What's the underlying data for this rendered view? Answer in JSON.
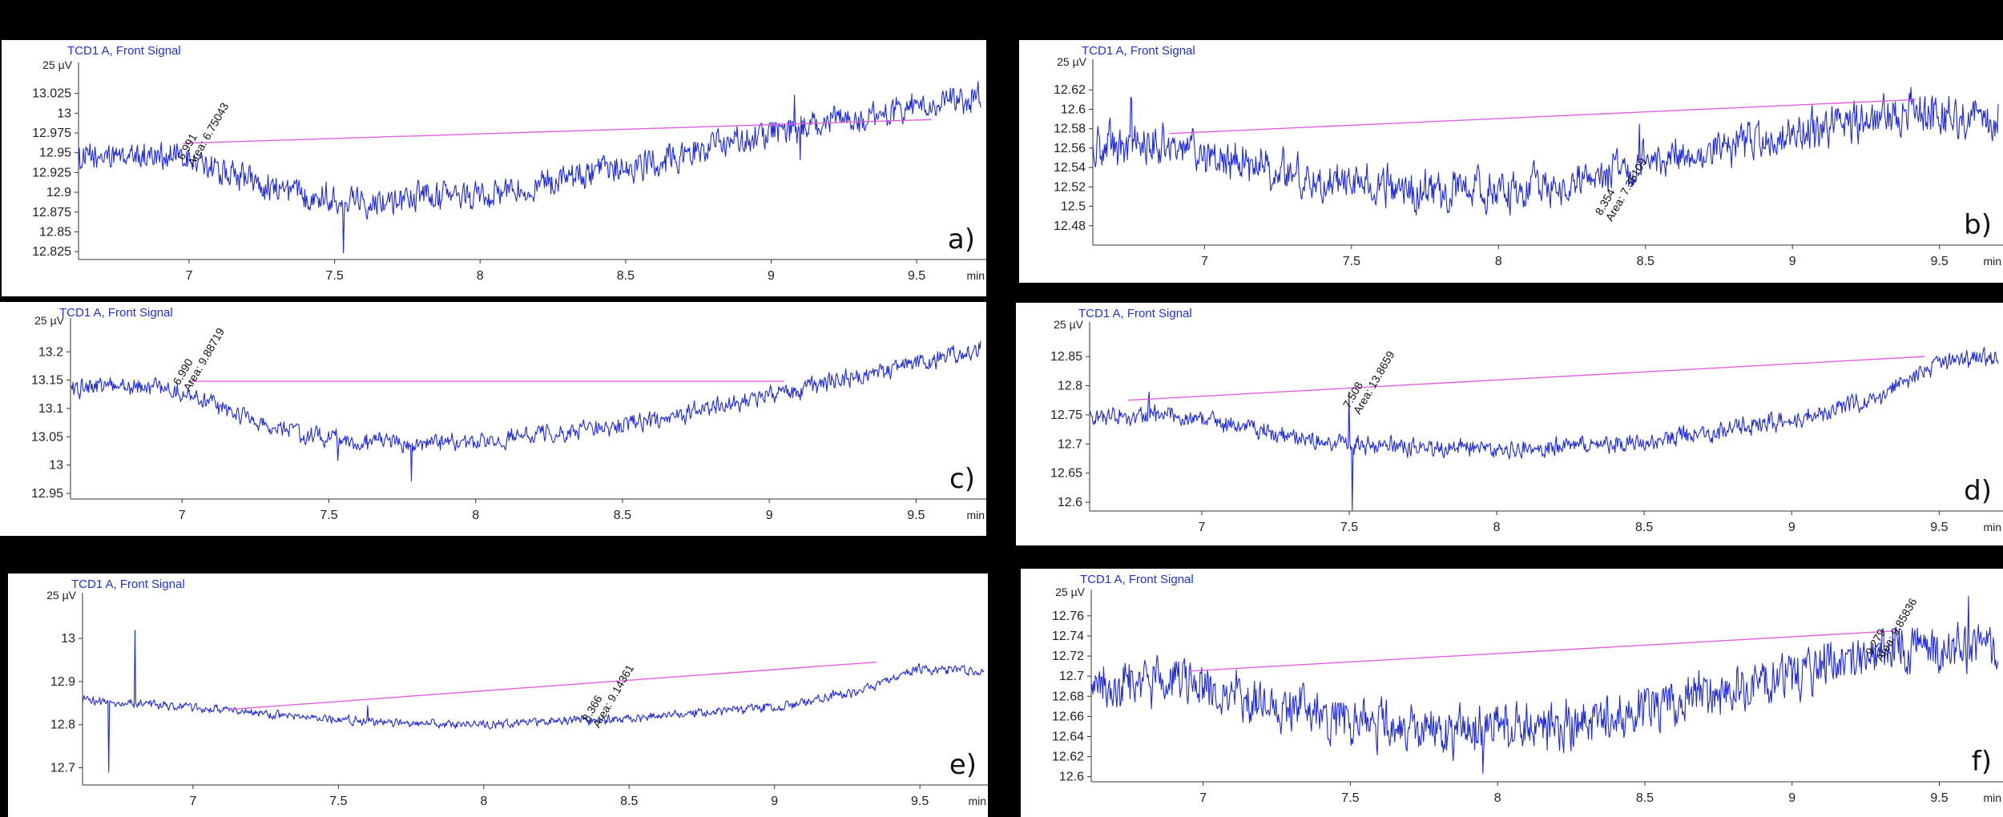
{
  "colors": {
    "signal": "#1f2bd6",
    "baseline": "#e060e0",
    "title": "#2233cc"
  },
  "chart_data": [
    {
      "type": "line",
      "panel_label": "a)",
      "title": "TCD1 A, Front Signal",
      "y_unit_label": "25 µV",
      "x_unit_label": "min",
      "x_range": [
        6.62,
        9.72
      ],
      "ylim": [
        12.815,
        13.05
      ],
      "x_ticks": [
        7,
        7.5,
        8,
        8.5,
        9,
        9.5
      ],
      "x_tick_labels": [
        "7",
        "7.5",
        "8",
        "8.5",
        "9",
        "9.5"
      ],
      "y_ticks": [
        12.825,
        12.85,
        12.875,
        12.9,
        12.925,
        12.95,
        12.975,
        13,
        13.025
      ],
      "y_tick_labels": [
        "12.825",
        "12.85",
        "12.875",
        "12.9",
        "12.925",
        "12.95",
        "12.975",
        "13",
        "13.025"
      ],
      "signal_profile": {
        "x": [
          6.62,
          6.9,
          7.05,
          7.3,
          7.55,
          8.0,
          8.5,
          9.0,
          9.72
        ],
        "y": [
          12.942,
          12.948,
          12.935,
          12.905,
          12.89,
          12.895,
          12.93,
          12.975,
          13.02
        ]
      },
      "noise_amplitude": 0.014,
      "spikes": [
        {
          "x": 7.53,
          "dy": -0.06
        },
        {
          "x": 9.08,
          "dy": 0.05
        },
        {
          "x": 9.1,
          "dy": -0.035
        }
      ],
      "baseline_segment": {
        "x": [
          6.98,
          9.55
        ],
        "y": [
          12.962,
          12.992
        ]
      },
      "peak_annotation": {
        "x": 6.98,
        "y": 12.94,
        "rt_label": "6.991",
        "area_label": "Area: 6.75043"
      }
    },
    {
      "type": "line",
      "panel_label": "b)",
      "title": "TCD1 A, Front Signal",
      "y_unit_label": "25 µV",
      "x_unit_label": "min",
      "x_range": [
        6.62,
        9.7
      ],
      "ylim": [
        12.46,
        12.64
      ],
      "x_ticks": [
        7,
        7.5,
        8,
        8.5,
        9,
        9.5
      ],
      "x_tick_labels": [
        "7",
        "7.5",
        "8",
        "8.5",
        "9",
        "9.5"
      ],
      "y_ticks": [
        12.48,
        12.5,
        12.52,
        12.54,
        12.56,
        12.58,
        12.6,
        12.62
      ],
      "y_tick_labels": [
        "12.48",
        "12.5",
        "12.52",
        "12.54",
        "12.56",
        "12.58",
        "12.6",
        "12.62"
      ],
      "signal_profile": {
        "x": [
          6.62,
          6.9,
          7.05,
          7.4,
          7.8,
          8.2,
          8.5,
          9.0,
          9.4,
          9.7
        ],
        "y": [
          12.56,
          12.565,
          12.55,
          12.525,
          12.515,
          12.52,
          12.545,
          12.575,
          12.595,
          12.59
        ]
      },
      "noise_amplitude": 0.016,
      "spikes": [
        {
          "x": 6.75,
          "dy": 0.03
        },
        {
          "x": 8.48,
          "dy": 0.04
        },
        {
          "x": 9.35,
          "dy": 0.03
        }
      ],
      "baseline_segment": {
        "x": [
          6.88,
          9.42
        ],
        "y": [
          12.575,
          12.61
        ]
      },
      "peak_annotation": {
        "x": 8.35,
        "y": 12.49,
        "rt_label": "8.354",
        "area_label": "Area: 7.35109"
      }
    },
    {
      "type": "line",
      "panel_label": "c)",
      "title": "TCD1 A, Front Signal",
      "y_unit_label": "25 µV",
      "x_unit_label": "min",
      "x_range": [
        6.62,
        9.72
      ],
      "ylim": [
        12.94,
        13.24
      ],
      "x_ticks": [
        7,
        7.5,
        8,
        8.5,
        9,
        9.5
      ],
      "x_tick_labels": [
        "7",
        "7.5",
        "8",
        "8.5",
        "9",
        "9.5"
      ],
      "y_ticks": [
        12.95,
        13,
        13.05,
        13.1,
        13.15,
        13.2
      ],
      "y_tick_labels": [
        "12.95",
        "13",
        "13.05",
        "13.1",
        "13.15",
        "13.2"
      ],
      "signal_profile": {
        "x": [
          6.62,
          6.9,
          7.05,
          7.3,
          7.6,
          8.0,
          8.5,
          9.0,
          9.5,
          9.72
        ],
        "y": [
          13.135,
          13.14,
          13.12,
          13.065,
          13.04,
          13.04,
          13.07,
          13.12,
          13.18,
          13.205
        ]
      },
      "noise_amplitude": 0.012,
      "spikes": [
        {
          "x": 7.78,
          "dy": -0.06
        },
        {
          "x": 7.53,
          "dy": -0.03
        }
      ],
      "baseline_segment": {
        "x": [
          7.02,
          9.05
        ],
        "y": [
          13.148,
          13.148
        ]
      },
      "peak_annotation": {
        "x": 6.99,
        "y": 13.14,
        "rt_label": "6.990",
        "area_label": "Area: 9.88719"
      }
    },
    {
      "type": "line",
      "panel_label": "d)",
      "title": "TCD1 A, Front Signal",
      "y_unit_label": "25 µV",
      "x_unit_label": "min",
      "x_range": [
        6.62,
        9.7
      ],
      "ylim": [
        12.585,
        12.89
      ],
      "x_ticks": [
        7,
        7.5,
        8,
        8.5,
        9,
        9.5
      ],
      "x_tick_labels": [
        "7",
        "7.5",
        "8",
        "8.5",
        "9",
        "9.5"
      ],
      "y_ticks": [
        12.6,
        12.65,
        12.7,
        12.75,
        12.8,
        12.85
      ],
      "y_tick_labels": [
        "12.6",
        "12.65",
        "12.7",
        "12.75",
        "12.8",
        "12.85"
      ],
      "signal_profile": {
        "x": [
          6.62,
          6.9,
          7.05,
          7.3,
          7.6,
          8.0,
          8.5,
          9.0,
          9.3,
          9.5,
          9.7
        ],
        "y": [
          12.745,
          12.75,
          12.74,
          12.71,
          12.695,
          12.69,
          12.705,
          12.74,
          12.78,
          12.84,
          12.85
        ]
      },
      "noise_amplitude": 0.012,
      "spikes": [
        {
          "x": 7.5,
          "dy": 0.1
        },
        {
          "x": 7.51,
          "dy": -0.12
        },
        {
          "x": 6.82,
          "dy": 0.04
        }
      ],
      "baseline_segment": {
        "x": [
          6.75,
          9.45
        ],
        "y": [
          12.775,
          12.85
        ]
      },
      "peak_annotation": {
        "x": 7.5,
        "y": 12.76,
        "rt_label": "7.508",
        "area_label": "Area: 13.8659"
      }
    },
    {
      "type": "line",
      "panel_label": "e)",
      "title": "TCD1 A, Front Signal",
      "y_unit_label": "25 µV",
      "x_unit_label": "min",
      "x_range": [
        6.62,
        9.72
      ],
      "ylim": [
        12.66,
        13.08
      ],
      "x_ticks": [
        7,
        7.5,
        8,
        8.5,
        9,
        9.5
      ],
      "x_tick_labels": [
        "7",
        "7.5",
        "8",
        "8.5",
        "9",
        "9.5"
      ],
      "y_ticks": [
        12.7,
        12.8,
        12.9,
        13
      ],
      "y_tick_labels": [
        "12.7",
        "12.8",
        "12.9",
        "13"
      ],
      "signal_profile": {
        "x": [
          6.62,
          6.8,
          7.0,
          7.5,
          8.0,
          8.5,
          9.0,
          9.3,
          9.5,
          9.72
        ],
        "y": [
          12.855,
          12.85,
          12.84,
          12.81,
          12.8,
          12.815,
          12.84,
          12.88,
          12.93,
          12.925
        ]
      },
      "noise_amplitude": 0.008,
      "spikes": [
        {
          "x": 6.8,
          "dy": 0.18
        },
        {
          "x": 6.71,
          "dy": -0.16
        },
        {
          "x": 7.6,
          "dy": 0.03
        }
      ],
      "baseline_segment": {
        "x": [
          7.12,
          9.35
        ],
        "y": [
          12.835,
          12.945
        ]
      },
      "peak_annotation": {
        "x": 8.36,
        "y": 12.805,
        "rt_label": "8.366",
        "area_label": "Area: 9.14361"
      }
    },
    {
      "type": "line",
      "panel_label": "f)",
      "title": "TCD1 A, Front Signal",
      "y_unit_label": "25 µV",
      "x_unit_label": "min",
      "x_range": [
        6.62,
        9.7
      ],
      "ylim": [
        12.595,
        12.775
      ],
      "x_ticks": [
        7,
        7.5,
        8,
        8.5,
        9,
        9.5
      ],
      "x_tick_labels": [
        "7",
        "7.5",
        "8",
        "8.5",
        "9",
        "9.5"
      ],
      "y_ticks": [
        12.6,
        12.62,
        12.64,
        12.66,
        12.68,
        12.7,
        12.72,
        12.74,
        12.76
      ],
      "y_tick_labels": [
        "12.6",
        "12.62",
        "12.64",
        "12.66",
        "12.68",
        "12.7",
        "12.72",
        "12.74",
        "12.76"
      ],
      "signal_profile": {
        "x": [
          6.62,
          6.9,
          7.1,
          7.5,
          7.9,
          8.3,
          8.7,
          9.0,
          9.3,
          9.7
        ],
        "y": [
          12.69,
          12.695,
          12.68,
          12.655,
          12.645,
          12.655,
          12.68,
          12.7,
          12.725,
          12.73
        ]
      },
      "noise_amplitude": 0.018,
      "spikes": [
        {
          "x": 7.95,
          "dy": -0.04
        },
        {
          "x": 9.6,
          "dy": 0.04
        }
      ],
      "baseline_segment": {
        "x": [
          6.95,
          9.35
        ],
        "y": [
          12.705,
          12.745
        ]
      },
      "peak_annotation": {
        "x": 9.27,
        "y": 12.72,
        "rt_label": "9.279",
        "area_label": "Area: 9.85836"
      }
    }
  ]
}
